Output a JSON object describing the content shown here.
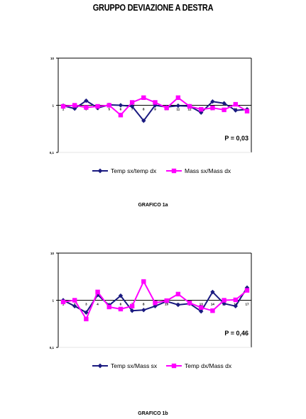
{
  "page": {
    "title": "GRUPPO DEVIAZIONE A DESTRA"
  },
  "chart_data": [
    {
      "type": "line",
      "caption": "GRAFICO 1a",
      "annotation": "P = 0,03",
      "x": [
        "1",
        "2",
        "3",
        "4",
        "5",
        "6",
        "7",
        "8",
        "9",
        "10",
        "11",
        "12",
        "13",
        "14",
        "15",
        "16",
        "17"
      ],
      "y_scale": "log",
      "ylim": [
        0.1,
        10
      ],
      "y_ticks": [
        "10",
        "1",
        "0,1"
      ],
      "grid": false,
      "legend_position": "bottom",
      "series": [
        {
          "name": "Temp sx/temp dx",
          "color": "#1a1a80",
          "marker": "diamond",
          "values": [
            0.98,
            0.85,
            1.25,
            0.88,
            1.02,
            1.0,
            0.95,
            0.47,
            1.0,
            0.92,
            0.98,
            0.96,
            0.7,
            1.2,
            1.1,
            0.78,
            0.82
          ]
        },
        {
          "name": "Mass sx/Mass dx",
          "color": "#ff00ff",
          "marker": "square",
          "values": [
            0.95,
            1.0,
            0.9,
            0.95,
            1.0,
            0.62,
            1.15,
            1.45,
            1.15,
            0.88,
            1.45,
            0.95,
            0.82,
            0.88,
            0.8,
            1.05,
            0.75
          ]
        }
      ]
    },
    {
      "type": "line",
      "caption": "GRAFICO 1b",
      "annotation": "P = 0,46",
      "x": [
        "1",
        "2",
        "3",
        "4",
        "5",
        "6",
        "7",
        "8",
        "9",
        "10",
        "11",
        "12",
        "13",
        "14",
        "15",
        "16",
        "17"
      ],
      "y_scale": "log",
      "ylim": [
        0.1,
        10
      ],
      "y_ticks": [
        "10",
        "1",
        "0,1"
      ],
      "grid": false,
      "legend_position": "bottom",
      "series": [
        {
          "name": "Temp sx/Mass sx",
          "color": "#1a1a80",
          "marker": "diamond",
          "values": [
            1.0,
            0.75,
            0.55,
            1.3,
            0.78,
            1.25,
            0.6,
            0.62,
            0.75,
            0.95,
            0.8,
            0.85,
            0.58,
            1.5,
            0.85,
            0.75,
            1.85
          ]
        },
        {
          "name": "Temp dx/Mass dx",
          "color": "#ff00ff",
          "marker": "square",
          "values": [
            0.92,
            1.0,
            0.4,
            1.5,
            0.72,
            0.65,
            0.75,
            2.5,
            0.88,
            0.98,
            1.35,
            0.88,
            0.7,
            0.6,
            1.0,
            1.02,
            1.62
          ]
        }
      ]
    }
  ]
}
